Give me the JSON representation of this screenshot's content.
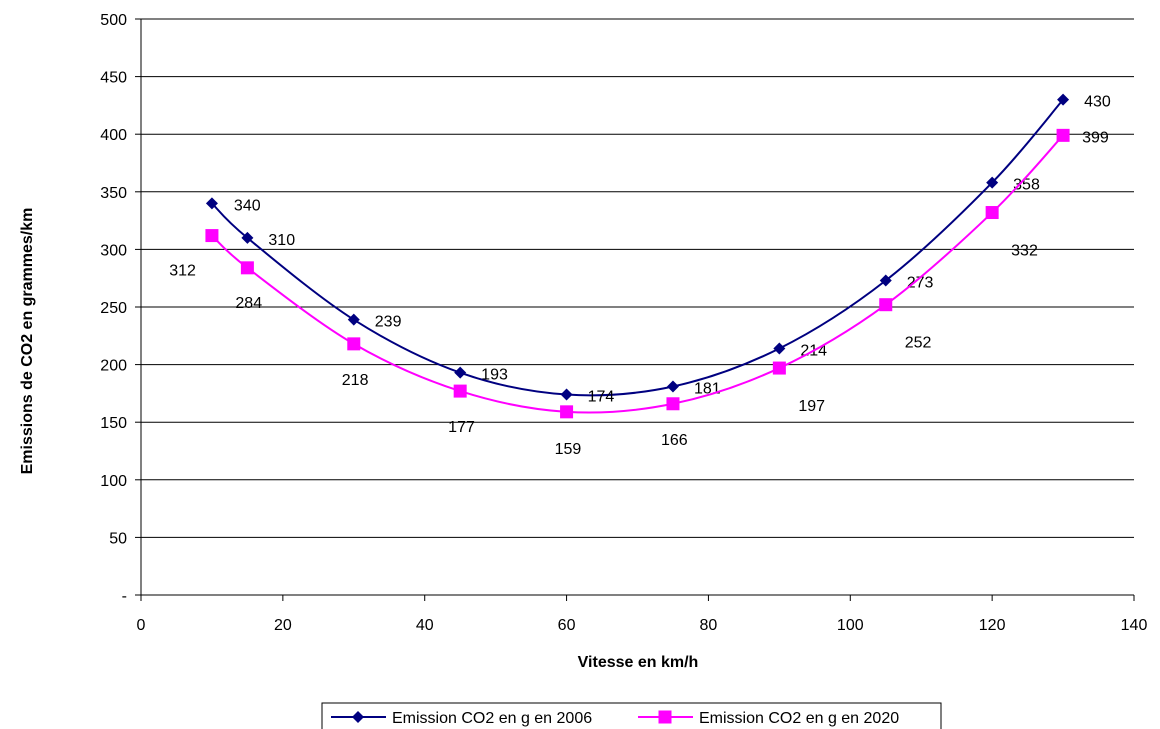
{
  "chart_data": {
    "type": "line",
    "title": "",
    "xlabel": "Vitesse en km/h",
    "ylabel": "Emissions de CO2 en grammes/km",
    "xlim": [
      0,
      140
    ],
    "ylim": [
      0,
      500
    ],
    "xticks": [
      "0",
      "20",
      "40",
      "60",
      "80",
      "100",
      "120",
      "140"
    ],
    "yticks": [
      "-",
      "50",
      "100",
      "150",
      "200",
      "250",
      "300",
      "350",
      "400",
      "450",
      "500"
    ],
    "grid": "horizontal",
    "legend_position": "bottom",
    "smooth": true,
    "series": [
      {
        "name": "Emission CO2 en g en 2006",
        "color": "#000080",
        "marker": "diamond",
        "x": [
          10,
          15,
          30,
          45,
          60,
          75,
          90,
          105,
          120,
          130
        ],
        "y": [
          340,
          310,
          239,
          193,
          174,
          181,
          214,
          273,
          358,
          430
        ],
        "labels": [
          "340",
          "310",
          "239",
          "193",
          "174",
          "181",
          "214",
          "273",
          "358",
          "430"
        ]
      },
      {
        "name": "Emission CO2 en g en 2020",
        "color": "#FF00FF",
        "marker": "square",
        "x": [
          10,
          15,
          30,
          45,
          60,
          75,
          90,
          105,
          120,
          130
        ],
        "y": [
          312,
          284,
          218,
          177,
          159,
          166,
          197,
          252,
          332,
          399
        ],
        "labels": [
          "312",
          "284",
          "218",
          "177",
          "159",
          "166",
          "197",
          "252",
          "332",
          "399"
        ]
      }
    ]
  }
}
